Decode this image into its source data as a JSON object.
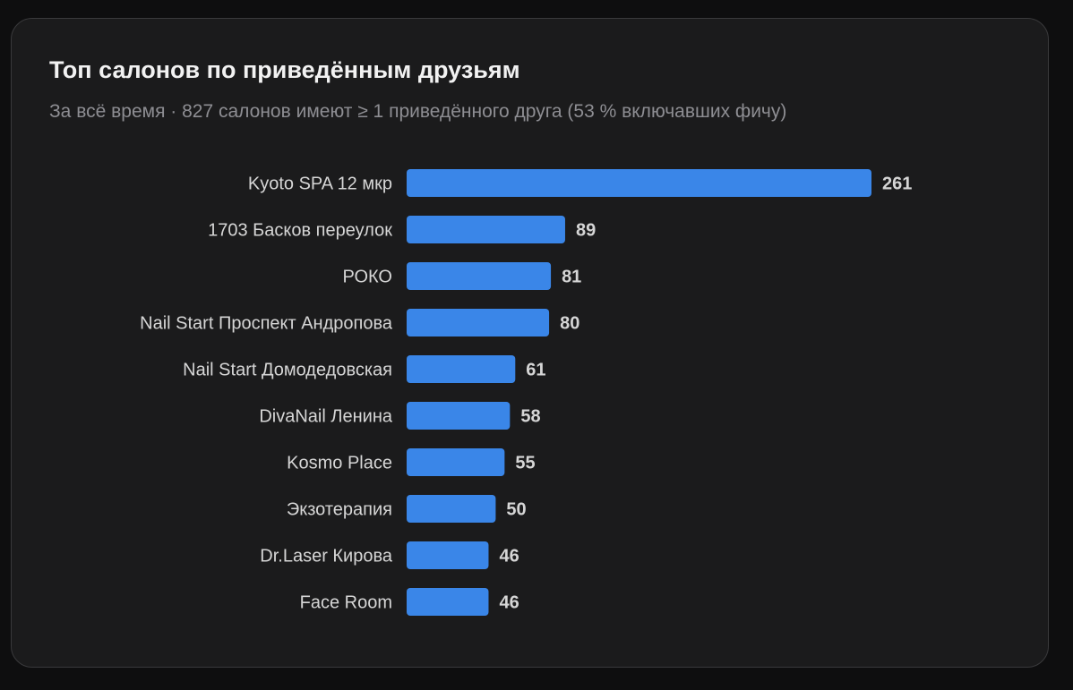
{
  "card": {
    "title": "Топ салонов по приведённым друзьям",
    "subtitle": "За всё время · 827 салонов имеют ≥ 1 приведённого друга (53 % включавших фичу)"
  },
  "colors": {
    "background": "#0e0e0f",
    "card": "#1b1b1c",
    "bar": "#3a86e8",
    "text": "#f2f2f2",
    "muted": "#8e8e93"
  },
  "chart_data": {
    "type": "bar",
    "orientation": "horizontal",
    "title": "Топ салонов по приведённым друзьям",
    "subtitle": "За всё время · 827 салонов имеют ≥ 1 приведённого друга (53 % включавших фичу)",
    "xlabel": "",
    "ylabel": "",
    "xlim": [
      0,
      261
    ],
    "grid": false,
    "legend": "none",
    "categories": [
      "Kyoto SPA 12 мкр",
      "1703 Басков переулок",
      "РОКО",
      "Nail Start Проспект Андропова",
      "Nail Start Домодедовская",
      "DivaNail Ленина",
      "Kosmo Place",
      "Экзотерапия",
      "Dr.Laser Кирова",
      "Face Room"
    ],
    "values": [
      261,
      89,
      81,
      80,
      61,
      58,
      55,
      50,
      46,
      46
    ]
  }
}
